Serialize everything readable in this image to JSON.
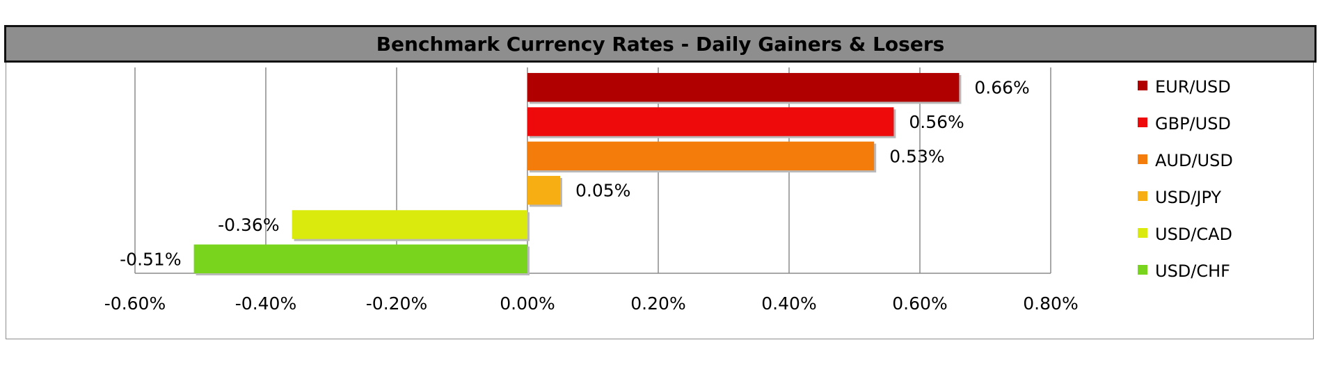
{
  "chart_data": {
    "type": "bar",
    "orientation": "horizontal",
    "title": "Benchmark Currency Rates - Daily Gainers & Losers",
    "categories": [
      "EUR/USD",
      "GBP/USD",
      "AUD/USD",
      "USD/JPY",
      "USD/CAD",
      "USD/CHF"
    ],
    "values": [
      0.66,
      0.56,
      0.53,
      0.05,
      -0.36,
      -0.51
    ],
    "data_labels": [
      "0.66%",
      "0.56%",
      "0.53%",
      "0.05%",
      "-0.36%",
      "-0.51%"
    ],
    "colors": [
      "#b10000",
      "#ee0a0a",
      "#f47c0a",
      "#f6ae12",
      "#d9ea0c",
      "#78d41c"
    ],
    "xlim": [
      -0.6,
      0.8
    ],
    "x_ticks": [
      -0.6,
      -0.4,
      -0.2,
      0.0,
      0.2,
      0.4,
      0.6,
      0.8
    ],
    "x_tick_labels": [
      "-0.60%",
      "-0.40%",
      "-0.20%",
      "0.00%",
      "0.20%",
      "0.40%",
      "0.60%",
      "0.80%"
    ],
    "xlabel": "",
    "ylabel": "",
    "grid": "vertical",
    "legend": {
      "placement": "right",
      "entries": [
        "EUR/USD",
        "GBP/USD",
        "AUD/USD",
        "USD/JPY",
        "USD/CAD",
        "USD/CHF"
      ]
    }
  }
}
